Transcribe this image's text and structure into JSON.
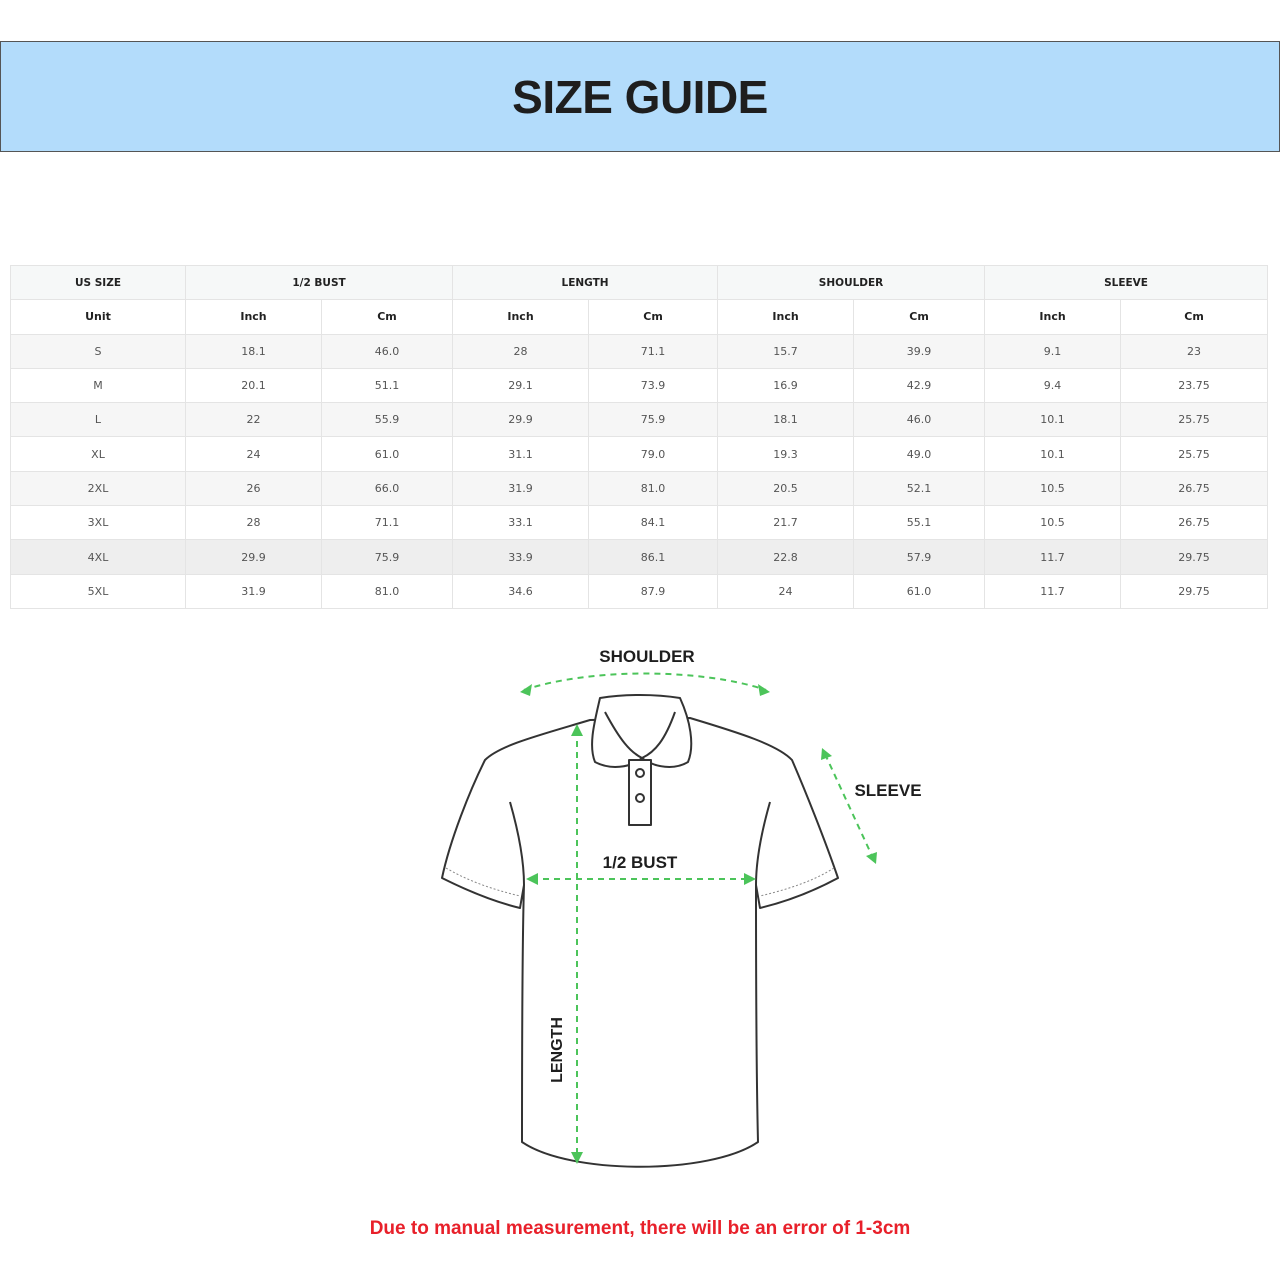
{
  "header": {
    "title": "SIZE GUIDE",
    "background": "#b3dcfb"
  },
  "table": {
    "groups": [
      "US SIZE",
      "1/2 BUST",
      "LENGTH",
      "SHOULDER",
      "SLEEVE"
    ],
    "units": [
      "Unit",
      "Inch",
      "Cm",
      "Inch",
      "Cm",
      "Inch",
      "Cm",
      "Inch",
      "Cm"
    ],
    "rows": [
      [
        "S",
        "18.1",
        "46.0",
        "28",
        "71.1",
        "15.7",
        "39.9",
        "9.1",
        "23"
      ],
      [
        "M",
        "20.1",
        "51.1",
        "29.1",
        "73.9",
        "16.9",
        "42.9",
        "9.4",
        "23.75"
      ],
      [
        "L",
        "22",
        "55.9",
        "29.9",
        "75.9",
        "18.1",
        "46.0",
        "10.1",
        "25.75"
      ],
      [
        "XL",
        "24",
        "61.0",
        "31.1",
        "79.0",
        "19.3",
        "49.0",
        "10.1",
        "25.75"
      ],
      [
        "2XL",
        "26",
        "66.0",
        "31.9",
        "81.0",
        "20.5",
        "52.1",
        "10.5",
        "26.75"
      ],
      [
        "3XL",
        "28",
        "71.1",
        "33.1",
        "84.1",
        "21.7",
        "55.1",
        "10.5",
        "26.75"
      ],
      [
        "4XL",
        "29.9",
        "75.9",
        "33.9",
        "86.1",
        "22.8",
        "57.9",
        "11.7",
        "29.75"
      ],
      [
        "5XL",
        "31.9",
        "81.0",
        "34.6",
        "87.9",
        "24",
        "61.0",
        "11.7",
        "29.75"
      ]
    ]
  },
  "diagram": {
    "shoulder_label": "SHOULDER",
    "sleeve_label": "SLEEVE",
    "bust_label": "1/2 BUST",
    "length_label": "LENGTH",
    "arrow_color": "#4cc45a"
  },
  "note": {
    "text": "Due to manual measurement, there will be an error of 1-3cm",
    "color": "#e8202a"
  }
}
